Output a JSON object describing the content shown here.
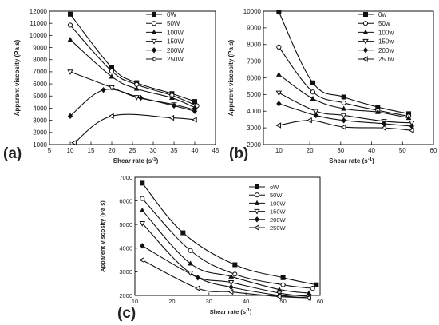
{
  "chart_data": [
    {
      "panel_label": "(a)",
      "type": "scatter",
      "xlabel": "Shear rate",
      "xunit": "(s",
      "xunit_sup": "-1",
      "xunit_close": ")",
      "ylabel": "Apparent viscosity  (Pa s)",
      "xlim": [
        5,
        45
      ],
      "ylim": [
        1000,
        12000
      ],
      "xticks": [
        5,
        10,
        15,
        20,
        25,
        30,
        35,
        40,
        45
      ],
      "yticks": [
        1000,
        2000,
        3000,
        4000,
        5000,
        6000,
        7000,
        8000,
        9000,
        10000,
        11000,
        12000
      ],
      "legend_position": "top-right",
      "series": [
        {
          "name": "0W",
          "marker": "square",
          "x": [
            10,
            20,
            26,
            34.5,
            40
          ],
          "y": [
            11750,
            7350,
            6100,
            5200,
            4550
          ]
        },
        {
          "name": "50W",
          "marker": "circle-open",
          "x": [
            10,
            20,
            26,
            34.5,
            40.5
          ],
          "y": [
            10850,
            7050,
            5950,
            5050,
            4200
          ]
        },
        {
          "name": "100W",
          "marker": "triangle",
          "x": [
            10,
            20,
            26,
            34.5,
            40
          ],
          "y": [
            9650,
            6600,
            5600,
            4850,
            4050
          ]
        },
        {
          "name": "150W",
          "marker": "triangle-down-open",
          "x": [
            10,
            20,
            26,
            35,
            40
          ],
          "y": [
            7000,
            5700,
            4900,
            4300,
            3850
          ]
        },
        {
          "name": "200W",
          "marker": "diamond",
          "x": [
            10,
            18,
            27,
            35,
            40
          ],
          "y": [
            3350,
            5500,
            4850,
            4200,
            3750
          ]
        },
        {
          "name": "250W",
          "marker": "triangle-left-open",
          "x": [
            11,
            20,
            34.5,
            40
          ],
          "y": [
            1150,
            3350,
            3200,
            3050
          ]
        }
      ]
    },
    {
      "panel_label": "(b)",
      "type": "scatter",
      "xlabel": "Shear rate",
      "xunit": "(s",
      "xunit_sup": "-1",
      "xunit_close": ")",
      "ylabel": "Apparent viscosity (Pa s)",
      "xlim": [
        5,
        60
      ],
      "ylim": [
        2000,
        10000
      ],
      "xticks": [
        10,
        20,
        30,
        40,
        50,
        60
      ],
      "yticks": [
        2000,
        3000,
        4000,
        5000,
        6000,
        7000,
        8000,
        9000,
        10000
      ],
      "legend_position": "top-right",
      "series": [
        {
          "name": "0w",
          "marker": "square",
          "x": [
            10,
            21,
            31,
            42,
            52
          ],
          "y": [
            9950,
            5700,
            4850,
            4250,
            3850
          ]
        },
        {
          "name": "50w",
          "marker": "circle-open",
          "x": [
            10,
            21,
            31,
            42,
            52
          ],
          "y": [
            7850,
            5150,
            4500,
            4050,
            3700
          ]
        },
        {
          "name": "100w",
          "marker": "triangle",
          "x": [
            10,
            21,
            31,
            42,
            52
          ],
          "y": [
            6200,
            4750,
            4150,
            3950,
            3600
          ]
        },
        {
          "name": "150w",
          "marker": "triangle-down-open",
          "x": [
            10,
            22,
            31,
            44,
            53
          ],
          "y": [
            5100,
            4000,
            3750,
            3400,
            3300
          ]
        },
        {
          "name": "200w",
          "marker": "diamond",
          "x": [
            10,
            22,
            31,
            44,
            53
          ],
          "y": [
            4450,
            3750,
            3450,
            3250,
            3100
          ]
        },
        {
          "name": "250w",
          "marker": "triangle-left-open",
          "x": [
            10,
            20,
            31,
            44,
            53
          ],
          "y": [
            3150,
            3450,
            3050,
            3000,
            2850
          ]
        }
      ]
    },
    {
      "panel_label": "(c)",
      "type": "scatter",
      "xlabel": "Shear rate",
      "xunit": "(s",
      "xunit_sup": "-1",
      "xunit_close": ")",
      "ylabel": "Apparent viscosity (Pa s)",
      "xlim": [
        10,
        60
      ],
      "ylim": [
        2000,
        7000
      ],
      "xticks": [
        10,
        20,
        30,
        40,
        50,
        60
      ],
      "yticks": [
        2000,
        3000,
        4000,
        5000,
        6000,
        7000
      ],
      "legend_position": "top-right",
      "series": [
        {
          "name": "oW",
          "marker": "square",
          "x": [
            12,
            23,
            37,
            50,
            59
          ],
          "y": [
            6750,
            4650,
            3300,
            2750,
            2450
          ]
        },
        {
          "name": "50W",
          "marker": "circle-open",
          "x": [
            12,
            25,
            37,
            50,
            58
          ],
          "y": [
            6100,
            3900,
            2900,
            2450,
            2300
          ]
        },
        {
          "name": "100W",
          "marker": "triangle",
          "x": [
            12,
            25,
            36,
            49,
            57
          ],
          "y": [
            5600,
            3350,
            2800,
            2250,
            2100
          ]
        },
        {
          "name": "150W",
          "marker": "triangle-down-open",
          "x": [
            12,
            25,
            36,
            49,
            57
          ],
          "y": [
            5050,
            2950,
            2550,
            2100,
            1950
          ]
        },
        {
          "name": "200W",
          "marker": "diamond",
          "x": [
            12,
            27,
            36,
            49,
            57
          ],
          "y": [
            4100,
            2750,
            2350,
            2000,
            1900
          ]
        },
        {
          "name": "250W",
          "marker": "triangle-left-open",
          "x": [
            12,
            27,
            36,
            49,
            57
          ],
          "y": [
            3500,
            2300,
            2150,
            1950,
            1900
          ]
        }
      ]
    }
  ]
}
